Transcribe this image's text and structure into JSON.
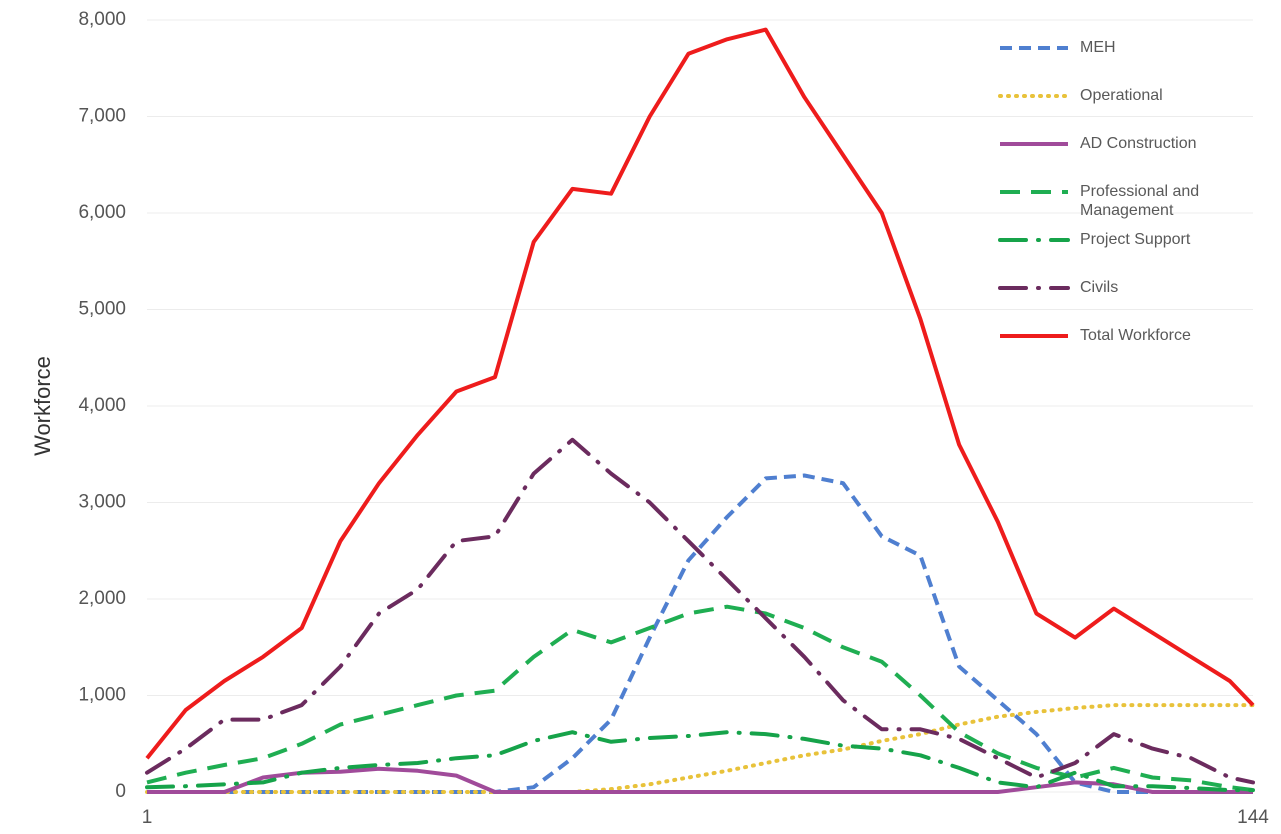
{
  "chart_data": {
    "type": "line",
    "y_label": "Workforce",
    "x": [
      1,
      6,
      11,
      16,
      21,
      26,
      31,
      36,
      41,
      46,
      51,
      56,
      61,
      66,
      71,
      76,
      81,
      86,
      91,
      96,
      101,
      106,
      111,
      116,
      121,
      126,
      131,
      136,
      141,
      144
    ],
    "xlim": [
      1,
      144
    ],
    "xticks": [
      1,
      144
    ],
    "ylim": [
      0,
      8000
    ],
    "yticks": [
      0,
      {
        "value": 1000,
        "label": "1,000"
      },
      {
        "value": 2000,
        "label": "2,000"
      },
      {
        "value": 3000,
        "label": "3,000"
      },
      {
        "value": 4000,
        "label": "4,000"
      },
      {
        "value": 5000,
        "label": "5,000"
      },
      {
        "value": 6000,
        "label": "6,000"
      },
      {
        "value": 7000,
        "label": "7,000"
      },
      {
        "value": 8000,
        "label": "8,000"
      }
    ],
    "grid": true,
    "legend": "upper right",
    "series": [
      {
        "name": "MEH",
        "color": "#4f7fd0",
        "style": "dashed",
        "values": [
          0,
          0,
          0,
          0,
          0,
          0,
          0,
          0,
          0,
          0,
          50,
          350,
          750,
          1600,
          2400,
          2850,
          3250,
          3280,
          3200,
          2650,
          2450,
          1300,
          950,
          600,
          100,
          0,
          0,
          0,
          0,
          0
        ]
      },
      {
        "name": "Operational",
        "color": "#e8c23a",
        "style": "dotted",
        "values": [
          0,
          0,
          0,
          0,
          0,
          0,
          0,
          0,
          0,
          0,
          0,
          0,
          30,
          80,
          150,
          220,
          300,
          380,
          440,
          530,
          600,
          700,
          780,
          830,
          870,
          900,
          900,
          900,
          900,
          900
        ]
      },
      {
        "name": "AD Construction",
        "color": "#a04b9a",
        "style": "solid",
        "values": [
          0,
          0,
          0,
          150,
          200,
          210,
          240,
          220,
          170,
          0,
          0,
          0,
          0,
          0,
          0,
          0,
          0,
          0,
          0,
          0,
          0,
          0,
          0,
          50,
          100,
          80,
          0,
          0,
          0,
          0
        ]
      },
      {
        "name": "Professional and Management",
        "color": "#1fae52",
        "style": "longdash",
        "values": [
          100,
          200,
          280,
          350,
          500,
          700,
          800,
          900,
          1000,
          1050,
          1400,
          1680,
          1550,
          1700,
          1850,
          1920,
          1850,
          1700,
          1500,
          1350,
          1000,
          620,
          400,
          250,
          150,
          250,
          150,
          120,
          50,
          20
        ]
      },
      {
        "name": "Project Support",
        "color": "#16a34a",
        "style": "dashdot",
        "values": [
          50,
          60,
          80,
          100,
          200,
          250,
          280,
          300,
          350,
          380,
          530,
          620,
          520,
          560,
          580,
          620,
          600,
          550,
          480,
          450,
          380,
          250,
          100,
          50,
          200,
          60,
          60,
          40,
          20,
          20
        ]
      },
      {
        "name": "Civils",
        "color": "#6b2b5e",
        "style": "dashdot",
        "values": [
          200,
          450,
          750,
          750,
          900,
          1300,
          1850,
          2100,
          2600,
          2650,
          3300,
          3650,
          3300,
          3000,
          2600,
          2200,
          1800,
          1400,
          950,
          650,
          650,
          550,
          350,
          150,
          300,
          600,
          450,
          350,
          150,
          100
        ]
      },
      {
        "name": "Total Workforce",
        "color": "#ee1c1c",
        "style": "solid",
        "values": [
          350,
          850,
          1150,
          1400,
          1700,
          2600,
          3200,
          3700,
          4150,
          4300,
          5700,
          6250,
          6200,
          7000,
          7650,
          7800,
          7900,
          7200,
          6600,
          6000,
          4900,
          3600,
          2800,
          1850,
          1600,
          1900,
          1650,
          1400,
          1150,
          900
        ]
      }
    ]
  }
}
